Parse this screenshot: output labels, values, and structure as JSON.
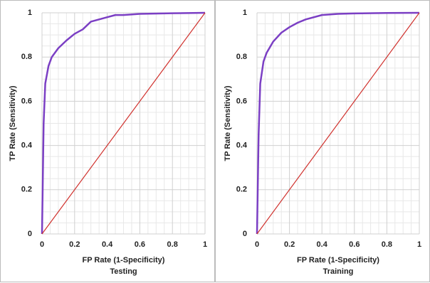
{
  "chart_data": [
    {
      "type": "line",
      "subtitle": "Testing",
      "xlabel": "FP Rate (1-Specificity)",
      "ylabel": "TP Rate (Sensitivity)",
      "xlim": [
        0,
        1
      ],
      "ylim": [
        0,
        1
      ],
      "xticks": [
        0,
        0.2,
        0.4,
        0.6,
        0.8,
        1
      ],
      "yticks": [
        0,
        0.2,
        0.4,
        0.6,
        0.8,
        1
      ],
      "grid": true,
      "minor_divisions": 4,
      "series": [
        {
          "color": "#7b3fc4",
          "x": [
            0,
            0.01,
            0.02,
            0.04,
            0.06,
            0.1,
            0.15,
            0.2,
            0.25,
            0.3,
            0.35,
            0.4,
            0.45,
            0.5,
            0.6,
            0.8,
            1
          ],
          "values": [
            0,
            0.5,
            0.68,
            0.76,
            0.8,
            0.84,
            0.875,
            0.905,
            0.925,
            0.96,
            0.97,
            0.98,
            0.99,
            0.99,
            0.995,
            0.998,
            1
          ]
        },
        {
          "color": "#d0312d",
          "x": [
            0,
            1
          ],
          "values": [
            0,
            1
          ]
        }
      ]
    },
    {
      "type": "line",
      "subtitle": "Training",
      "xlabel": "FP Rate (1-Specificity)",
      "ylabel": "TP Rate (Sensitivity)",
      "xlim": [
        0,
        1
      ],
      "ylim": [
        0,
        1
      ],
      "xticks": [
        0,
        0.2,
        0.4,
        0.6,
        0.8,
        1
      ],
      "yticks": [
        0,
        0.2,
        0.4,
        0.6,
        0.8,
        1
      ],
      "grid": true,
      "minor_divisions": 4,
      "series": [
        {
          "color": "#7b3fc4",
          "x": [
            0,
            0.01,
            0.02,
            0.04,
            0.06,
            0.1,
            0.15,
            0.2,
            0.25,
            0.3,
            0.4,
            0.5,
            0.6,
            0.8,
            1
          ],
          "values": [
            0,
            0.45,
            0.68,
            0.78,
            0.82,
            0.87,
            0.91,
            0.935,
            0.955,
            0.97,
            0.99,
            0.995,
            0.997,
            0.999,
            1
          ]
        },
        {
          "color": "#d0312d",
          "x": [
            0,
            1
          ],
          "values": [
            0,
            1
          ]
        }
      ]
    }
  ]
}
